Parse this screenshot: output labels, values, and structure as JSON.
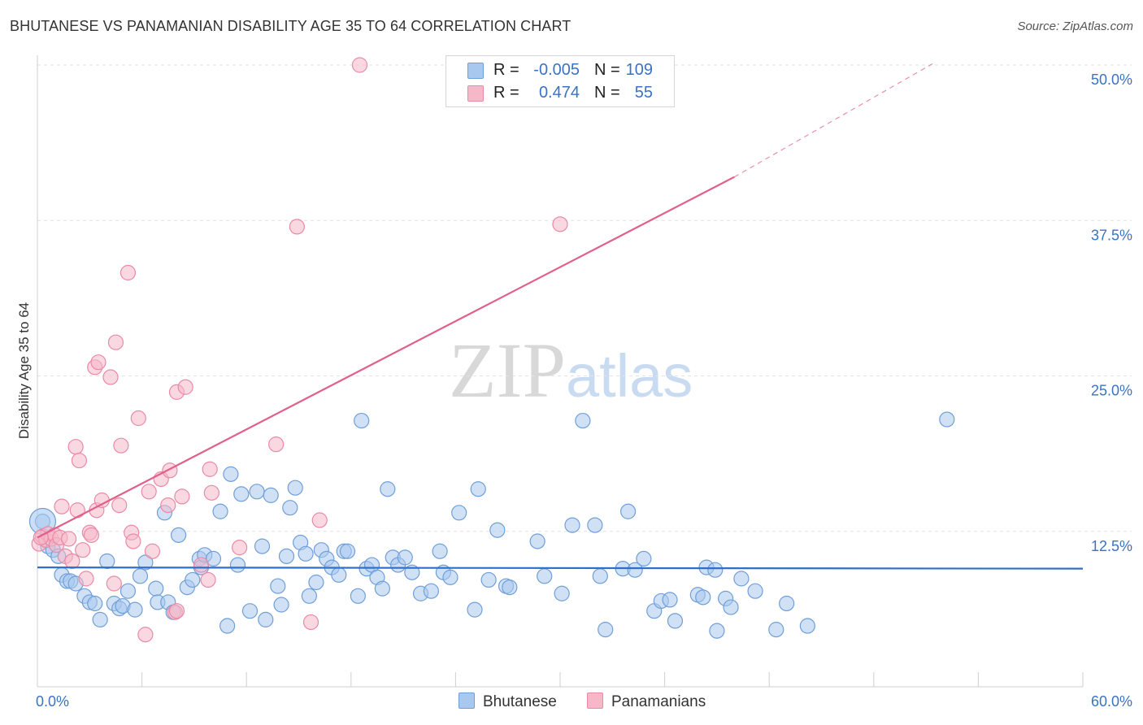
{
  "title": "BHUTANESE VS PANAMANIAN DISABILITY AGE 35 TO 64 CORRELATION CHART",
  "source": "Source: ZipAtlas.com",
  "watermark": {
    "zip": "ZIP",
    "atlas": "atlas"
  },
  "colors": {
    "blue_fill": "#a9c8ef",
    "blue_stroke": "#6f9fd8",
    "blue_line": "#2f6fc7",
    "pink_fill": "#f6b8c9",
    "pink_stroke": "#e98aa7",
    "pink_line": "#e0608c",
    "axis_text": "#3a73c4",
    "grid": "#e3e3e3"
  },
  "legend": {
    "rows": [
      {
        "r_label": "R =",
        "r_value": "-0.005",
        "n_label": "N =",
        "n_value": "109",
        "color": "#a9c8ef"
      },
      {
        "r_label": "R =",
        "r_value": "0.474",
        "n_label": "N =",
        "n_value": "55",
        "color": "#f6b8c9"
      }
    ]
  },
  "bottom_legend": [
    {
      "label": "Bhutanese",
      "color": "#a9c8ef"
    },
    {
      "label": "Panamanians",
      "color": "#f6b8c9"
    }
  ],
  "chart_data": {
    "type": "scatter",
    "title": "BHUTANESE VS PANAMANIAN DISABILITY AGE 35 TO 64 CORRELATION CHART",
    "xlabel": "",
    "ylabel": "Disability Age 35 to 64",
    "xlim": [
      0,
      60
    ],
    "ylim": [
      0,
      50
    ],
    "x_tick_labels": [
      "0.0%",
      "60.0%"
    ],
    "y_ticks": [
      12.5,
      25.0,
      37.5,
      50.0
    ],
    "y_tick_labels": [
      "12.5%",
      "25.0%",
      "37.5%",
      "50.0%"
    ],
    "grid": true,
    "legend_position": "top-center",
    "series": [
      {
        "name": "Bhutanese",
        "r": -0.005,
        "n": 109,
        "trend": {
          "x": [
            0,
            60
          ],
          "y": [
            9.6,
            9.5
          ]
        },
        "points": [
          [
            0.3,
            13.3
          ],
          [
            0.6,
            11.3
          ],
          [
            0.9,
            11.0
          ],
          [
            1.2,
            10.5
          ],
          [
            1.4,
            9.0
          ],
          [
            1.7,
            8.5
          ],
          [
            1.9,
            8.5
          ],
          [
            2.2,
            8.3
          ],
          [
            2.7,
            7.3
          ],
          [
            3.0,
            6.8
          ],
          [
            3.3,
            6.7
          ],
          [
            3.6,
            5.4
          ],
          [
            4.0,
            10.1
          ],
          [
            4.4,
            6.7
          ],
          [
            4.7,
            6.3
          ],
          [
            4.9,
            6.5
          ],
          [
            5.2,
            7.7
          ],
          [
            5.6,
            6.2
          ],
          [
            5.9,
            8.9
          ],
          [
            6.2,
            10.0
          ],
          [
            6.8,
            7.9
          ],
          [
            6.9,
            6.8
          ],
          [
            7.3,
            14.0
          ],
          [
            7.5,
            6.8
          ],
          [
            7.8,
            6.0
          ],
          [
            8.1,
            12.2
          ],
          [
            8.6,
            8.0
          ],
          [
            8.9,
            8.6
          ],
          [
            9.3,
            10.3
          ],
          [
            9.4,
            9.6
          ],
          [
            9.6,
            10.6
          ],
          [
            10.1,
            10.3
          ],
          [
            10.5,
            14.1
          ],
          [
            10.9,
            4.9
          ],
          [
            11.1,
            17.1
          ],
          [
            11.5,
            9.8
          ],
          [
            11.7,
            15.5
          ],
          [
            12.2,
            6.1
          ],
          [
            12.6,
            15.7
          ],
          [
            12.9,
            11.3
          ],
          [
            13.1,
            5.4
          ],
          [
            13.4,
            15.4
          ],
          [
            13.8,
            8.1
          ],
          [
            14.0,
            6.6
          ],
          [
            14.3,
            10.5
          ],
          [
            14.5,
            14.4
          ],
          [
            14.8,
            16.0
          ],
          [
            15.1,
            11.6
          ],
          [
            15.4,
            10.7
          ],
          [
            15.6,
            7.3
          ],
          [
            16.0,
            8.4
          ],
          [
            16.3,
            11.0
          ],
          [
            16.6,
            10.3
          ],
          [
            16.9,
            9.6
          ],
          [
            17.3,
            9.0
          ],
          [
            17.6,
            10.9
          ],
          [
            17.8,
            10.9
          ],
          [
            18.4,
            7.3
          ],
          [
            18.6,
            21.4
          ],
          [
            18.9,
            9.5
          ],
          [
            19.2,
            9.8
          ],
          [
            19.5,
            8.8
          ],
          [
            19.8,
            7.9
          ],
          [
            20.1,
            15.9
          ],
          [
            20.4,
            10.4
          ],
          [
            20.7,
            9.8
          ],
          [
            21.1,
            10.4
          ],
          [
            21.5,
            9.2
          ],
          [
            22.0,
            7.5
          ],
          [
            22.6,
            7.7
          ],
          [
            23.1,
            10.9
          ],
          [
            23.3,
            9.2
          ],
          [
            23.7,
            8.8
          ],
          [
            24.2,
            14.0
          ],
          [
            25.1,
            6.2
          ],
          [
            25.3,
            15.9
          ],
          [
            25.9,
            8.6
          ],
          [
            26.4,
            12.6
          ],
          [
            26.9,
            8.1
          ],
          [
            27.1,
            8.0
          ],
          [
            28.7,
            11.7
          ],
          [
            29.1,
            8.9
          ],
          [
            30.1,
            7.5
          ],
          [
            30.7,
            13.0
          ],
          [
            31.3,
            21.4
          ],
          [
            32.0,
            13.0
          ],
          [
            32.3,
            8.9
          ],
          [
            32.6,
            4.6
          ],
          [
            33.6,
            9.5
          ],
          [
            33.9,
            14.1
          ],
          [
            34.3,
            9.4
          ],
          [
            34.8,
            10.3
          ],
          [
            35.4,
            6.1
          ],
          [
            35.8,
            6.9
          ],
          [
            36.3,
            7.0
          ],
          [
            36.6,
            5.3
          ],
          [
            37.9,
            7.4
          ],
          [
            38.2,
            7.2
          ],
          [
            38.4,
            9.6
          ],
          [
            38.9,
            9.4
          ],
          [
            39.0,
            4.5
          ],
          [
            39.5,
            7.1
          ],
          [
            39.8,
            6.4
          ],
          [
            40.4,
            8.7
          ],
          [
            41.2,
            7.7
          ],
          [
            42.4,
            4.6
          ],
          [
            43.0,
            6.7
          ],
          [
            44.2,
            4.9
          ],
          [
            52.2,
            21.5
          ]
        ]
      },
      {
        "name": "Panamanians",
        "r": 0.474,
        "n": 55,
        "trend": {
          "x": [
            0,
            40
          ],
          "y": [
            12.0,
            41.0
          ],
          "dashed_to": {
            "x": [
              40,
              60
            ],
            "y": [
              41.0,
              57.0
            ]
          }
        },
        "points": [
          [
            0.1,
            11.5
          ],
          [
            0.3,
            12.1
          ],
          [
            0.5,
            11.8
          ],
          [
            0.6,
            12.3
          ],
          [
            0.8,
            11.9
          ],
          [
            1.0,
            12.2
          ],
          [
            1.1,
            11.4
          ],
          [
            1.3,
            12.0
          ],
          [
            1.4,
            14.5
          ],
          [
            1.6,
            10.5
          ],
          [
            1.8,
            11.9
          ],
          [
            2.0,
            10.1
          ],
          [
            2.2,
            19.3
          ],
          [
            2.3,
            14.2
          ],
          [
            2.4,
            18.2
          ],
          [
            2.6,
            11.0
          ],
          [
            2.8,
            8.7
          ],
          [
            3.0,
            12.4
          ],
          [
            3.1,
            12.2
          ],
          [
            3.3,
            25.7
          ],
          [
            3.4,
            14.2
          ],
          [
            3.5,
            26.1
          ],
          [
            3.7,
            15.0
          ],
          [
            4.2,
            24.9
          ],
          [
            4.4,
            8.3
          ],
          [
            4.5,
            27.7
          ],
          [
            4.7,
            14.6
          ],
          [
            4.8,
            19.4
          ],
          [
            5.2,
            33.3
          ],
          [
            5.4,
            12.4
          ],
          [
            5.5,
            11.7
          ],
          [
            5.8,
            21.6
          ],
          [
            6.2,
            4.2
          ],
          [
            6.4,
            15.7
          ],
          [
            6.6,
            10.9
          ],
          [
            7.1,
            16.7
          ],
          [
            7.5,
            14.6
          ],
          [
            7.6,
            17.4
          ],
          [
            7.9,
            6.0
          ],
          [
            8.0,
            6.1
          ],
          [
            8.0,
            23.7
          ],
          [
            8.3,
            15.3
          ],
          [
            8.5,
            24.1
          ],
          [
            9.4,
            9.8
          ],
          [
            9.8,
            8.6
          ],
          [
            9.9,
            17.5
          ],
          [
            10.0,
            15.6
          ],
          [
            11.6,
            11.2
          ],
          [
            13.7,
            19.5
          ],
          [
            14.9,
            37.0
          ],
          [
            15.7,
            5.2
          ],
          [
            16.2,
            13.4
          ],
          [
            18.5,
            50.0
          ],
          [
            30.0,
            37.2
          ],
          [
            0.2,
            12.0
          ]
        ]
      }
    ]
  }
}
